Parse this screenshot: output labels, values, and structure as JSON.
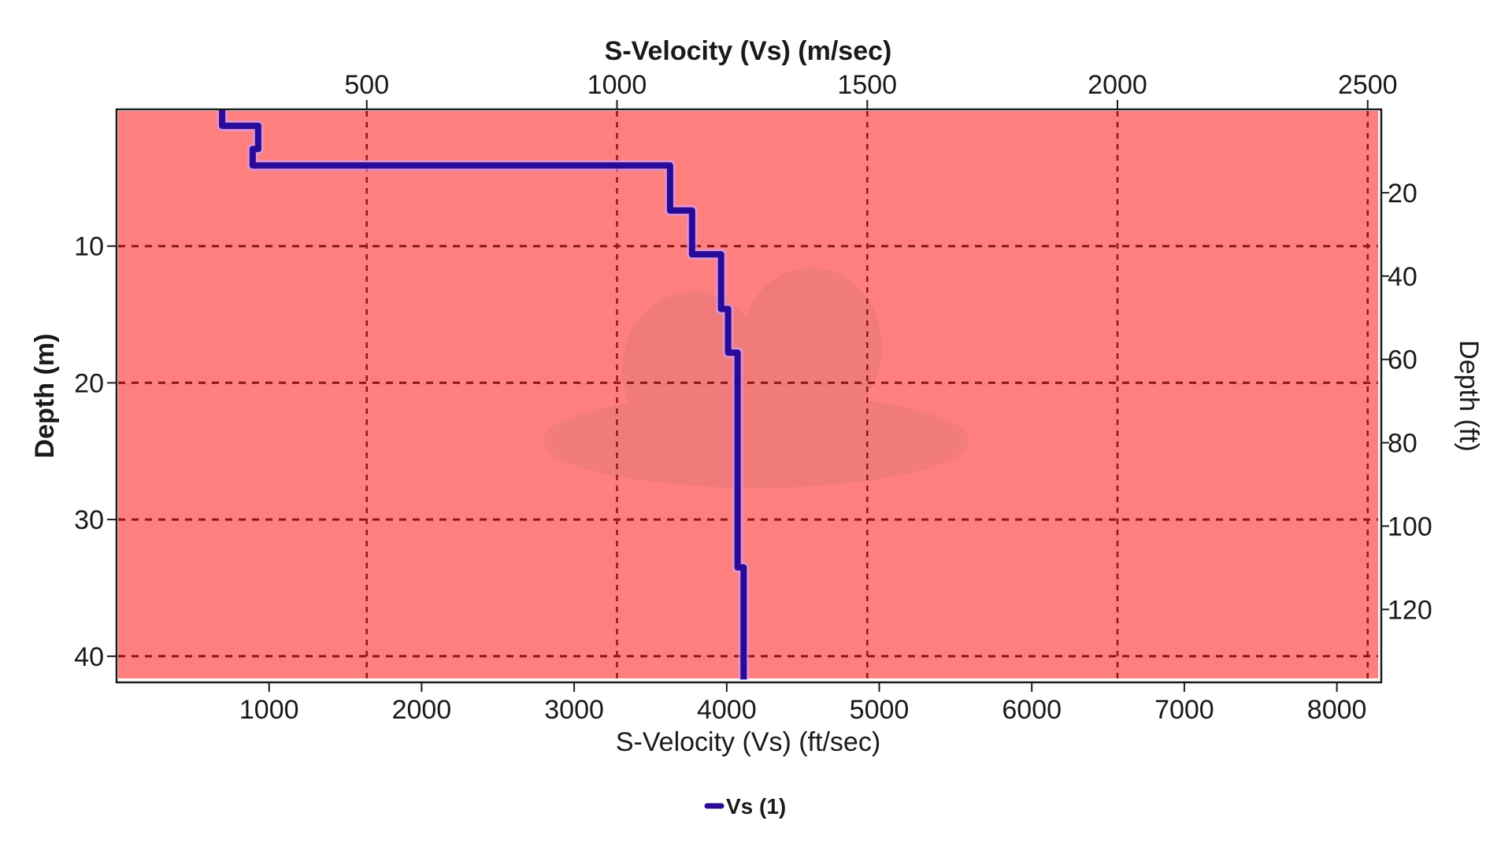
{
  "chart_data": {
    "type": "line",
    "subtype": "step-profile",
    "title": "S-Velocity (Vs) (m/sec)",
    "xlabel_top": "S-Velocity (Vs) (m/sec)",
    "xlabel_bottom": "S-Velocity (Vs) (ft/sec)",
    "ylabel_left": "Depth (m)",
    "ylabel_right": "Depth (ft)",
    "x_top_ticks": [
      500,
      1000,
      1500,
      2000,
      2500
    ],
    "x_bottom_ticks": [
      1000,
      2000,
      3000,
      4000,
      5000,
      6000,
      7000,
      8000
    ],
    "y_left_ticks": [
      10,
      20,
      30,
      40
    ],
    "y_right_ticks": [
      20,
      40,
      60,
      80,
      100,
      120
    ],
    "xlim_m_per_s": [
      0,
      2530
    ],
    "ylim_m": [
      0,
      41.7
    ],
    "y_inverted": true,
    "grid": true,
    "legend_position": "bottom-center",
    "series": [
      {
        "name": "Vs (1)",
        "color": "#2a0a99",
        "layers": [
          {
            "top_m": 0.0,
            "bottom_m": 1.2,
            "vs_m_per_s": 211
          },
          {
            "top_m": 1.2,
            "bottom_m": 2.9,
            "vs_m_per_s": 283
          },
          {
            "top_m": 2.9,
            "bottom_m": 4.1,
            "vs_m_per_s": 272
          },
          {
            "top_m": 4.1,
            "bottom_m": 7.4,
            "vs_m_per_s": 1106
          },
          {
            "top_m": 7.4,
            "bottom_m": 10.6,
            "vs_m_per_s": 1150
          },
          {
            "top_m": 10.6,
            "bottom_m": 14.6,
            "vs_m_per_s": 1208
          },
          {
            "top_m": 14.6,
            "bottom_m": 17.8,
            "vs_m_per_s": 1222
          },
          {
            "top_m": 17.8,
            "bottom_m": 33.5,
            "vs_m_per_s": 1241
          },
          {
            "top_m": 33.5,
            "bottom_m": 41.7,
            "vs_m_per_s": 1253
          }
        ]
      }
    ]
  },
  "colors": {
    "plot_background": "#ff7f7f",
    "gridline": "#8b1a1a",
    "series_line": "#2a0a99",
    "series_halo": "#c9a0ff",
    "axis": "#1a1a1a"
  },
  "labels": {
    "top_axis_title": "S-Velocity (Vs) (m/sec)",
    "bottom_axis_title": "S-Velocity (Vs) (ft/sec)",
    "left_axis_title": "Depth (m)",
    "right_axis_title": "Depth (ft)",
    "legend_entry": "Vs (1)",
    "top_ticks": [
      "500",
      "1000",
      "1500",
      "2000",
      "2500"
    ],
    "bottom_ticks": [
      "1000",
      "2000",
      "3000",
      "4000",
      "5000",
      "6000",
      "7000",
      "8000"
    ],
    "left_ticks": [
      "10",
      "20",
      "30",
      "40"
    ],
    "right_ticks": [
      "20",
      "40",
      "60",
      "80",
      "100",
      "120"
    ]
  }
}
